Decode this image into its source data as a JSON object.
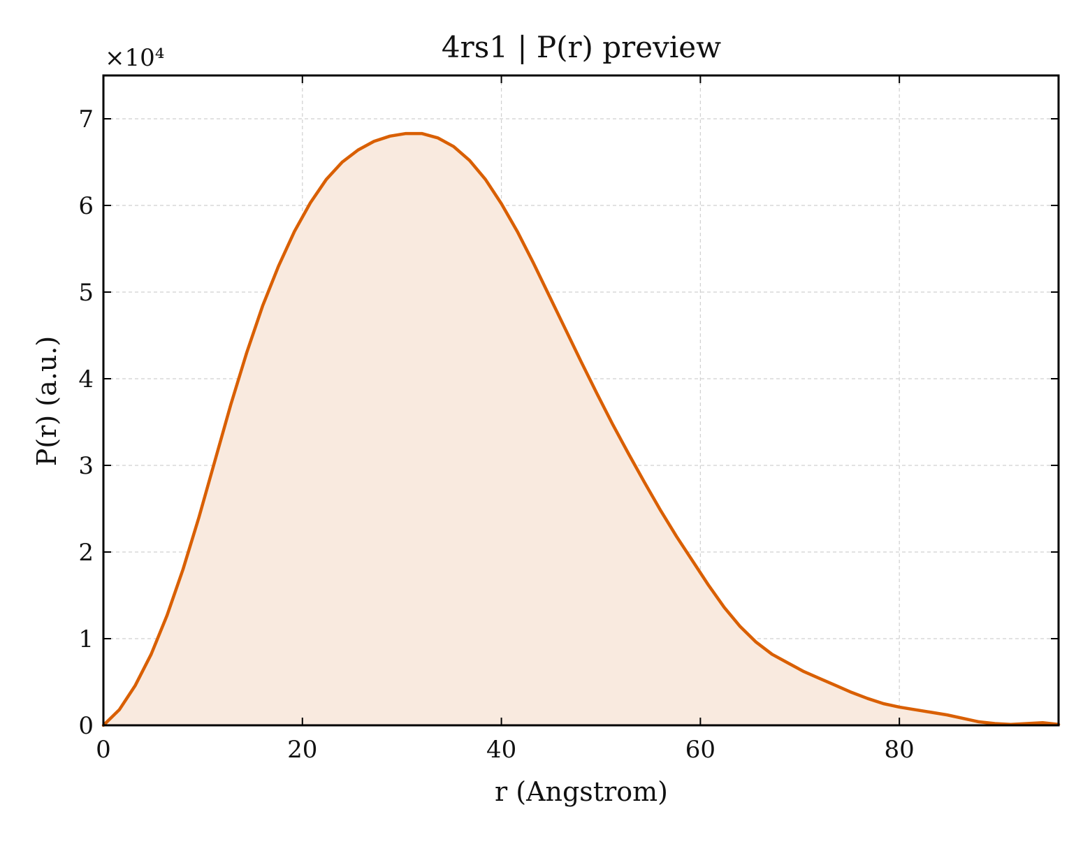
{
  "chart_data": {
    "type": "area",
    "title": "4rs1 | P(r) preview",
    "xlabel": "r (Angstrom)",
    "ylabel": "P(r) (a.u.)",
    "y_multiplier": "×10⁴",
    "xlim": [
      0,
      96
    ],
    "ylim": [
      0,
      7.5
    ],
    "x_ticks": [
      0,
      20,
      40,
      60,
      80
    ],
    "y_ticks": [
      0,
      1,
      2,
      3,
      4,
      5,
      6,
      7
    ],
    "grid": true,
    "legend": "none",
    "colors": {
      "line": "#d95f02",
      "fill": "#f9eadf",
      "grid": "#d0d0d0",
      "axes": "#000000"
    },
    "series": [
      {
        "x": [
          0,
          1.6,
          3.2,
          4.8,
          6.4,
          8.0,
          9.6,
          11.2,
          12.8,
          14.4,
          16.0,
          17.6,
          19.2,
          20.8,
          22.4,
          24.0,
          25.6,
          27.2,
          28.8,
          30.4,
          32.0,
          33.6,
          35.2,
          36.8,
          38.4,
          40.0,
          41.6,
          43.2,
          44.8,
          46.4,
          48.0,
          49.6,
          51.2,
          52.8,
          54.4,
          56.0,
          57.6,
          59.2,
          60.8,
          62.4,
          64.0,
          65.6,
          67.2,
          68.8,
          70.4,
          72.0,
          73.6,
          75.2,
          76.8,
          78.4,
          80.0,
          81.6,
          83.2,
          84.8,
          86.4,
          88.0,
          89.6,
          91.2,
          92.8,
          94.4,
          96.0
        ],
        "values": [
          0.0,
          0.18,
          0.46,
          0.82,
          1.27,
          1.8,
          2.4,
          3.05,
          3.7,
          4.3,
          4.84,
          5.3,
          5.7,
          6.03,
          6.3,
          6.5,
          6.64,
          6.74,
          6.8,
          6.83,
          6.83,
          6.78,
          6.68,
          6.52,
          6.3,
          6.02,
          5.7,
          5.34,
          4.96,
          4.58,
          4.2,
          3.83,
          3.47,
          3.13,
          2.8,
          2.48,
          2.18,
          1.9,
          1.62,
          1.36,
          1.14,
          0.96,
          0.82,
          0.72,
          0.62,
          0.54,
          0.46,
          0.38,
          0.31,
          0.25,
          0.21,
          0.18,
          0.15,
          0.12,
          0.08,
          0.04,
          0.02,
          0.01,
          0.02,
          0.03,
          0.01
        ]
      }
    ]
  }
}
